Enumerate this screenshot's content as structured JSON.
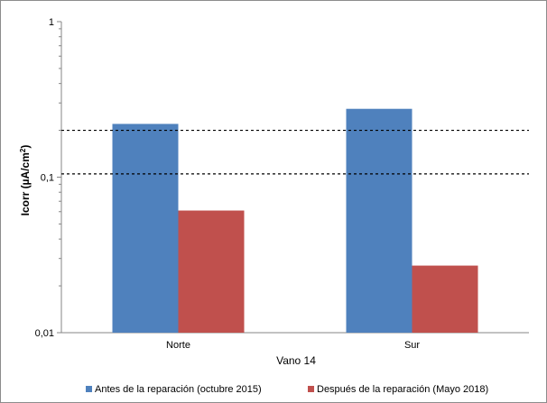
{
  "chart_data": {
    "type": "bar",
    "scale": "log",
    "categories": [
      "Norte",
      "Sur"
    ],
    "series": [
      {
        "name": "Antes de la reparación (octubre 2015)",
        "color": "#4f81bd",
        "values": [
          0.22,
          0.275
        ]
      },
      {
        "name": "Después de la reparación (Mayo 2018)",
        "color": "#c0504d",
        "values": [
          0.061,
          0.027
        ]
      }
    ],
    "reference_lines": [
      0.2,
      0.105
    ],
    "yticks": [
      {
        "value": 1,
        "label": "1"
      },
      {
        "value": 0.1,
        "label": "0,1"
      },
      {
        "value": 0.01,
        "label": "0,01"
      }
    ],
    "ylim": [
      0.01,
      1
    ],
    "xlabel": "Vano 14",
    "ylabel_main": "Icorr (",
    "ylabel_mu": "µ",
    "ylabel_unit": "A/cm",
    "ylabel_sup": "2",
    "ylabel_end": ")",
    "legend_position": "bottom",
    "grid": false
  }
}
